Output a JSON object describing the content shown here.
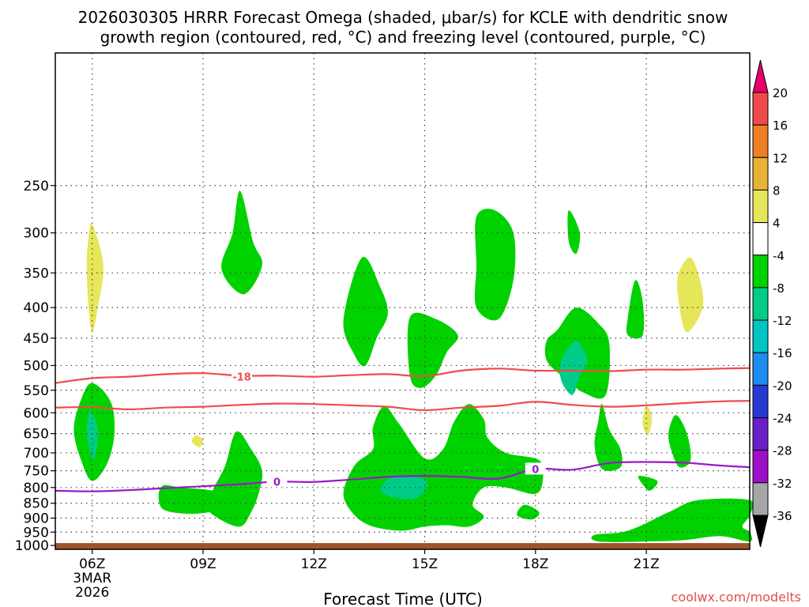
{
  "title": {
    "line1": "2026030305 HRRR Forecast Omega (shaded, μbar/s) for KCLE with dendritic snow",
    "line2": "growth region (contoured, red, °C) and freezing level (contoured, purple, °C)"
  },
  "credit": "coolwx.com/modelts",
  "chart_data": {
    "type": "contour",
    "title": "2026030305 HRRR Forecast Omega (shaded, μbar/s) for KCLE with dendritic snow growth region (contoured, red, °C) and freezing level (contoured, purple, °C)",
    "xlabel": "Forecast Time (UTC)",
    "ylabel": "",
    "x_ticks": [
      {
        "hour": 6,
        "label": "06Z",
        "sub1": "3MAR",
        "sub2": "2026"
      },
      {
        "hour": 9,
        "label": "09Z"
      },
      {
        "hour": 12,
        "label": "12Z"
      },
      {
        "hour": 15,
        "label": "15Z"
      },
      {
        "hour": 18,
        "label": "18Z"
      },
      {
        "hour": 21,
        "label": "21Z"
      }
    ],
    "xlim": [
      5,
      23.8
    ],
    "y_ticks": [
      250,
      300,
      350,
      400,
      450,
      500,
      550,
      600,
      650,
      700,
      750,
      800,
      850,
      900,
      950,
      1000
    ],
    "y_gridlines": [
      250,
      300,
      350,
      400,
      450,
      500,
      550,
      600,
      650,
      700,
      750,
      800,
      850,
      900,
      950
    ],
    "ylim": [
      150,
      1015
    ],
    "y_scale": "log-pressure (inverted)",
    "ground_level_hpa": 1000,
    "grid": true,
    "colorbar": {
      "labels": [
        "20",
        "16",
        "12",
        "8",
        "4",
        "-4",
        "-8",
        "-12",
        "-16",
        "-20",
        "-24",
        "-28",
        "-32",
        "-36"
      ],
      "colors": [
        "#e6006e",
        "#ef4b4b",
        "#f07e26",
        "#e6b337",
        "#e6e65a",
        "#ffffff",
        "#00d200",
        "#00cc88",
        "#00c3c3",
        "#1e8cf0",
        "#2838d2",
        "#6a1ec8",
        "#a00fc8",
        "#a6a6a6",
        "#000000"
      ]
    },
    "shaded_regions": [
      {
        "level": "4 to 8",
        "color": "#e6e65a",
        "points": [
          [
            6.0,
            290
          ],
          [
            6.3,
            340
          ],
          [
            6.15,
            400
          ],
          [
            6.0,
            440
          ],
          [
            5.9,
            400
          ],
          [
            5.85,
            340
          ],
          [
            5.9,
            305
          ]
        ]
      },
      {
        "level": "4 to 8",
        "color": "#e6e65a",
        "points": [
          [
            8.8,
            655
          ],
          [
            9.0,
            665
          ],
          [
            8.9,
            685
          ],
          [
            8.7,
            670
          ]
        ]
      },
      {
        "level": "4 to 8",
        "color": "#e6e65a",
        "points": [
          [
            22.2,
            330
          ],
          [
            22.5,
            370
          ],
          [
            22.5,
            405
          ],
          [
            22.1,
            440
          ],
          [
            21.9,
            400
          ],
          [
            21.85,
            355
          ]
        ]
      },
      {
        "level": "4 to 8",
        "color": "#e6e65a",
        "points": [
          [
            21.0,
            585
          ],
          [
            21.15,
            610
          ],
          [
            21.05,
            655
          ],
          [
            20.9,
            625
          ]
        ]
      },
      {
        "level": "-4 to -8",
        "color": "#00d200",
        "points": [
          [
            10.0,
            255
          ],
          [
            10.35,
            310
          ],
          [
            10.6,
            340
          ],
          [
            10.1,
            380
          ],
          [
            9.5,
            345
          ],
          [
            9.8,
            300
          ]
        ]
      },
      {
        "level": "-4 to -8",
        "color": "#00d200",
        "points": [
          [
            5.7,
            570
          ],
          [
            6.0,
            535
          ],
          [
            6.5,
            575
          ],
          [
            6.6,
            650
          ],
          [
            6.4,
            730
          ],
          [
            6.0,
            780
          ],
          [
            5.7,
            720
          ],
          [
            5.5,
            640
          ]
        ]
      },
      {
        "level": "-4 to -8",
        "color": "#00d200",
        "points": [
          [
            13.3,
            330
          ],
          [
            13.8,
            370
          ],
          [
            14.0,
            410
          ],
          [
            13.7,
            450
          ],
          [
            13.4,
            500
          ],
          [
            13.1,
            480
          ],
          [
            12.8,
            420
          ]
        ]
      },
      {
        "level": "-4 to -8",
        "color": "#00d200",
        "points": [
          [
            14.6,
            415
          ],
          [
            15.3,
            418
          ],
          [
            15.9,
            445
          ],
          [
            15.6,
            475
          ],
          [
            15.3,
            520
          ],
          [
            14.9,
            545
          ],
          [
            14.6,
            520
          ]
        ]
      },
      {
        "level": "-4 to -8",
        "color": "#00d200",
        "points": [
          [
            16.4,
            282
          ],
          [
            16.9,
            275
          ],
          [
            17.4,
            300
          ],
          [
            17.4,
            360
          ],
          [
            17.0,
            418
          ],
          [
            16.4,
            400
          ],
          [
            16.4,
            340
          ]
        ]
      },
      {
        "level": "-4 to -8",
        "color": "#00d200",
        "points": [
          [
            18.9,
            275
          ],
          [
            19.2,
            300
          ],
          [
            19.1,
            325
          ],
          [
            18.9,
            310
          ]
        ]
      },
      {
        "level": "-4 to -8",
        "color": "#00d200",
        "points": [
          [
            18.6,
            435
          ],
          [
            19.1,
            400
          ],
          [
            19.7,
            425
          ],
          [
            20.0,
            460
          ],
          [
            19.9,
            560
          ],
          [
            19.3,
            555
          ],
          [
            18.7,
            520
          ],
          [
            18.3,
            490
          ],
          [
            18.3,
            455
          ]
        ]
      },
      {
        "level": "-4 to -8",
        "color": "#00d200",
        "points": [
          [
            20.7,
            360
          ],
          [
            20.9,
            390
          ],
          [
            20.9,
            445
          ],
          [
            20.5,
            445
          ],
          [
            20.5,
            415
          ]
        ]
      },
      {
        "level": "-4 to -8",
        "color": "#00d200",
        "points": [
          [
            9.9,
            645
          ],
          [
            10.3,
            690
          ],
          [
            10.6,
            750
          ],
          [
            10.5,
            820
          ],
          [
            10.3,
            880
          ],
          [
            10.0,
            930
          ],
          [
            9.4,
            900
          ],
          [
            9.1,
            860
          ],
          [
            9.3,
            800
          ],
          [
            9.6,
            735
          ]
        ]
      },
      {
        "level": "-4 to -8",
        "color": "#00d200",
        "points": [
          [
            7.9,
            795
          ],
          [
            8.4,
            800
          ],
          [
            9.4,
            815
          ],
          [
            9.5,
            865
          ],
          [
            8.8,
            885
          ],
          [
            8.0,
            875
          ],
          [
            7.8,
            840
          ]
        ]
      },
      {
        "level": "-4 to -8",
        "color": "#00d200",
        "points": [
          [
            13.9,
            585
          ],
          [
            14.3,
            625
          ],
          [
            15.0,
            715
          ],
          [
            15.5,
            690
          ],
          [
            15.8,
            620
          ],
          [
            16.2,
            580
          ],
          [
            16.6,
            615
          ],
          [
            16.7,
            660
          ],
          [
            17.2,
            700
          ],
          [
            18.1,
            720
          ],
          [
            18.2,
            775
          ],
          [
            18.0,
            820
          ],
          [
            17.2,
            800
          ],
          [
            16.6,
            800
          ],
          [
            16.3,
            855
          ],
          [
            16.6,
            895
          ],
          [
            16.2,
            930
          ],
          [
            15.6,
            925
          ],
          [
            15.0,
            930
          ],
          [
            14.4,
            945
          ],
          [
            13.6,
            930
          ],
          [
            13.1,
            890
          ],
          [
            12.8,
            820
          ],
          [
            13.1,
            735
          ],
          [
            13.6,
            690
          ],
          [
            13.6,
            635
          ]
        ]
      },
      {
        "level": "-4 to -8",
        "color": "#00d200",
        "points": [
          [
            17.7,
            855
          ],
          [
            18.1,
            880
          ],
          [
            17.9,
            905
          ],
          [
            17.5,
            890
          ]
        ]
      },
      {
        "level": "-4 to -8",
        "color": "#00d200",
        "points": [
          [
            19.8,
            580
          ],
          [
            20.0,
            640
          ],
          [
            20.3,
            690
          ],
          [
            20.3,
            740
          ],
          [
            19.8,
            745
          ],
          [
            19.6,
            680
          ],
          [
            19.7,
            620
          ]
        ]
      },
      {
        "level": "-4 to -8",
        "color": "#00d200",
        "points": [
          [
            21.8,
            605
          ],
          [
            22.1,
            650
          ],
          [
            22.2,
            720
          ],
          [
            21.9,
            740
          ],
          [
            21.7,
            700
          ],
          [
            21.6,
            650
          ]
        ]
      },
      {
        "level": "-4 to -8",
        "color": "#00d200",
        "points": [
          [
            20.8,
            765
          ],
          [
            21.3,
            780
          ],
          [
            21.1,
            810
          ],
          [
            20.9,
            790
          ]
        ]
      },
      {
        "level": "-4 to -8",
        "color": "#00d200",
        "points": [
          [
            21.6,
            880
          ],
          [
            22.4,
            840
          ],
          [
            23.8,
            840
          ],
          [
            23.8,
            890
          ],
          [
            23.6,
            930
          ],
          [
            23.8,
            950
          ],
          [
            23.8,
            985
          ],
          [
            23.0,
            965
          ],
          [
            22.0,
            980
          ],
          [
            21.0,
            985
          ],
          [
            19.7,
            985
          ],
          [
            19.6,
            960
          ],
          [
            20.5,
            945
          ]
        ]
      },
      {
        "level": "-8 to -12",
        "color": "#00cc88",
        "points": [
          [
            5.95,
            595
          ],
          [
            6.15,
            645
          ],
          [
            6.05,
            720
          ],
          [
            5.9,
            680
          ],
          [
            5.85,
            640
          ]
        ]
      },
      {
        "level": "-8 to -12",
        "color": "#00cc88",
        "points": [
          [
            19.1,
            455
          ],
          [
            19.4,
            490
          ],
          [
            19.2,
            520
          ],
          [
            19.0,
            560
          ],
          [
            18.7,
            530
          ],
          [
            18.7,
            490
          ]
        ]
      },
      {
        "level": "-8 to -12",
        "color": "#00cc88",
        "points": [
          [
            14.2,
            765
          ],
          [
            15.0,
            775
          ],
          [
            15.0,
            810
          ],
          [
            14.7,
            835
          ],
          [
            14.1,
            830
          ],
          [
            13.8,
            805
          ]
        ]
      }
    ],
    "contours": [
      {
        "name": "dendritic snow growth region",
        "value": -18,
        "label": "-18",
        "color": "#ef4b4b",
        "points": [
          [
            5,
            535
          ],
          [
            6,
            525
          ],
          [
            7,
            522
          ],
          [
            8,
            517
          ],
          [
            9,
            515
          ],
          [
            10,
            520
          ],
          [
            11,
            520
          ],
          [
            12,
            522
          ],
          [
            13,
            519
          ],
          [
            14,
            517
          ],
          [
            15,
            521
          ],
          [
            16,
            510
          ],
          [
            17,
            506
          ],
          [
            18,
            510
          ],
          [
            19,
            510
          ],
          [
            20,
            511
          ],
          [
            21,
            508
          ],
          [
            22,
            508
          ],
          [
            23,
            506
          ],
          [
            23.8,
            505
          ]
        ],
        "label_at": [
          10.05,
          522
        ]
      },
      {
        "name": "dendritic snow growth region",
        "value": -12,
        "label": "",
        "color": "#ef4b4b",
        "points": [
          [
            5,
            588
          ],
          [
            6,
            587
          ],
          [
            7,
            592
          ],
          [
            8,
            588
          ],
          [
            9,
            586
          ],
          [
            10,
            582
          ],
          [
            11,
            579
          ],
          [
            12,
            580
          ],
          [
            13,
            583
          ],
          [
            14,
            586
          ],
          [
            15,
            594
          ],
          [
            16,
            588
          ],
          [
            17,
            584
          ],
          [
            18,
            575
          ],
          [
            19,
            582
          ],
          [
            20,
            586
          ],
          [
            21,
            583
          ],
          [
            22,
            578
          ],
          [
            23,
            574
          ],
          [
            23.8,
            573
          ]
        ],
        "label_at": null
      },
      {
        "name": "freezing level",
        "value": 0,
        "label": "0",
        "color": "#9a18c8",
        "points": [
          [
            5,
            810
          ],
          [
            6,
            812
          ],
          [
            7,
            808
          ],
          [
            8,
            802
          ],
          [
            9,
            796
          ],
          [
            10,
            790
          ],
          [
            11,
            782
          ],
          [
            12,
            783
          ],
          [
            13,
            776
          ],
          [
            14,
            768
          ],
          [
            15,
            765
          ],
          [
            16,
            768
          ],
          [
            17,
            773
          ],
          [
            18,
            745
          ],
          [
            19,
            747
          ],
          [
            20,
            728
          ],
          [
            21,
            725
          ],
          [
            22,
            727
          ],
          [
            23,
            735
          ],
          [
            23.8,
            740
          ]
        ],
        "label_at": [
          11.0,
          782
        ],
        "label_at2": [
          18.0,
          745
        ]
      }
    ]
  }
}
